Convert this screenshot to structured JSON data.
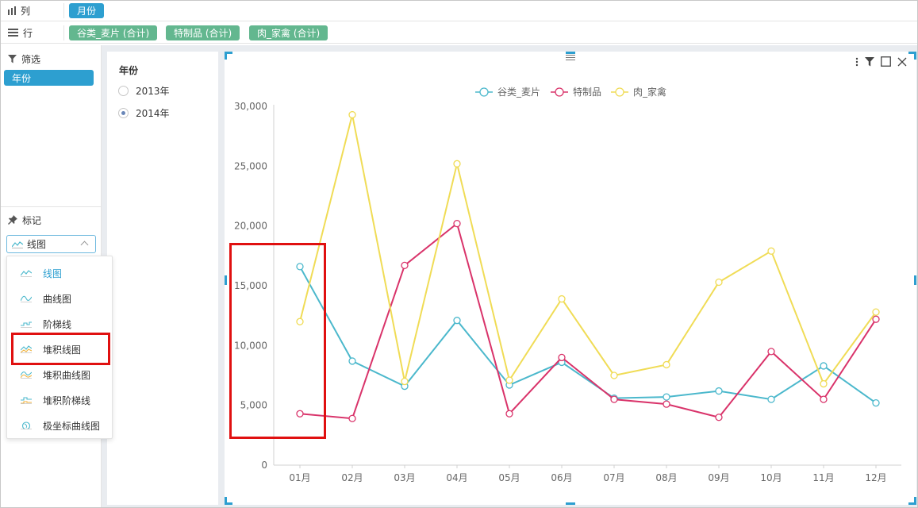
{
  "shelf": {
    "columns": {
      "label": "列",
      "pills": [
        "月份"
      ]
    },
    "rows": {
      "label": "行",
      "pills": [
        "谷类_麦片 (合计)",
        "特制品 (合计)",
        "肉_家禽 (合计)"
      ]
    }
  },
  "left_panel": {
    "filter_label": "筛选",
    "filter_pill": "年份",
    "marks_label": "标记",
    "mark_type_selected": "线图",
    "dropdown_items": [
      "线图",
      "曲线图",
      "阶梯线",
      "堆积线图",
      "堆积曲线图",
      "堆积阶梯线",
      "极坐标曲线图"
    ],
    "active_item_index": 0,
    "highlighted_item_index": 3
  },
  "year_filter": {
    "title": "年份",
    "options": [
      {
        "label": "2013年",
        "checked": false
      },
      {
        "label": "2014年",
        "checked": true
      }
    ]
  },
  "colors": {
    "accent": "#2d9fd0",
    "pill_green": "#63b78f",
    "highlight_red": "#e01010",
    "series": [
      "#4bb8cc",
      "#d9336a",
      "#f0dc56"
    ]
  },
  "chart_data": {
    "type": "line",
    "categories": [
      "01月",
      "02月",
      "03月",
      "04月",
      "05月",
      "06月",
      "07月",
      "08月",
      "09月",
      "10月",
      "11月",
      "12月"
    ],
    "series": [
      {
        "name": "谷类_麦片",
        "values": [
          16600,
          8700,
          6600,
          12100,
          6700,
          8600,
          5600,
          5700,
          6200,
          5500,
          8300,
          5200
        ]
      },
      {
        "name": "特制品",
        "values": [
          4300,
          3900,
          16700,
          20200,
          4300,
          9000,
          5500,
          5100,
          4000,
          9500,
          5500,
          12200
        ]
      },
      {
        "name": "肉_家禽",
        "values": [
          12000,
          29300,
          7000,
          25200,
          7100,
          13900,
          7500,
          8400,
          15300,
          17900,
          6800,
          12800
        ]
      }
    ],
    "y_ticks": [
      "0",
      "5,000",
      "10,000",
      "15,000",
      "20,000",
      "25,000",
      "30,000"
    ],
    "ylim": [
      0,
      30000
    ],
    "legend_position": "top-center",
    "grid": false
  }
}
